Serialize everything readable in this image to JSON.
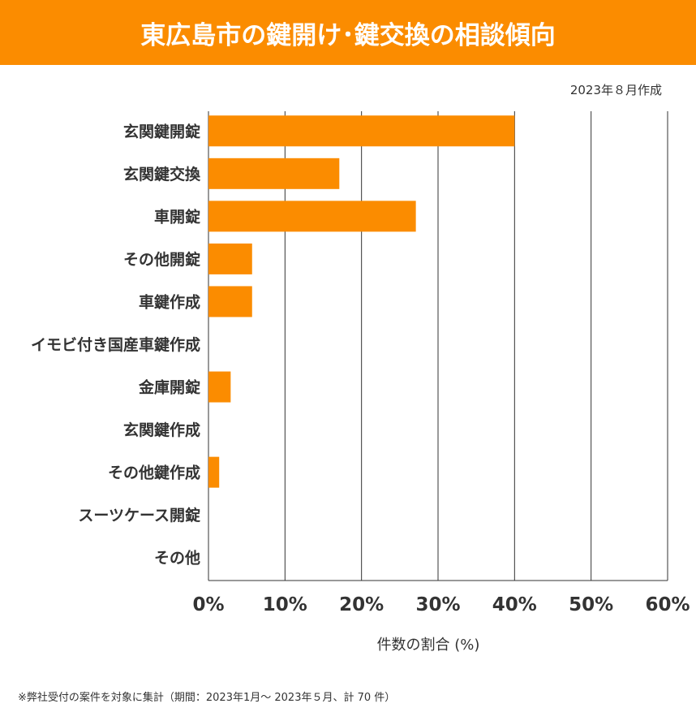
{
  "header": {
    "title": "東広島市の鍵開け･鍵交換の相談傾向"
  },
  "date_label": "2023年８月作成",
  "footnote": "※弊社受付の案件を対象に集計（期間：2023年1月～ 2023年５月、計 70 件）",
  "colors": {
    "bar": "#fb8c00",
    "header": "#fb8c00",
    "grid": "#333333"
  },
  "chart_data": {
    "type": "bar",
    "orientation": "horizontal",
    "categories": [
      "玄関鍵開錠",
      "玄関鍵交換",
      "車開錠",
      "その他開錠",
      "車鍵作成",
      "イモビ付き国産車鍵作成",
      "金庫開錠",
      "玄関鍵作成",
      "その他鍵作成",
      "スーツケース開錠",
      "その他"
    ],
    "values": [
      40.0,
      17.1,
      27.1,
      5.7,
      5.7,
      0,
      2.9,
      0,
      1.4,
      0,
      0
    ],
    "xlabel": "件数の割合 (%)",
    "xlim": [
      0,
      60
    ],
    "xticks": [
      "0%",
      "10%",
      "20%",
      "30%",
      "40%",
      "50%",
      "60%"
    ],
    "grid": true
  }
}
